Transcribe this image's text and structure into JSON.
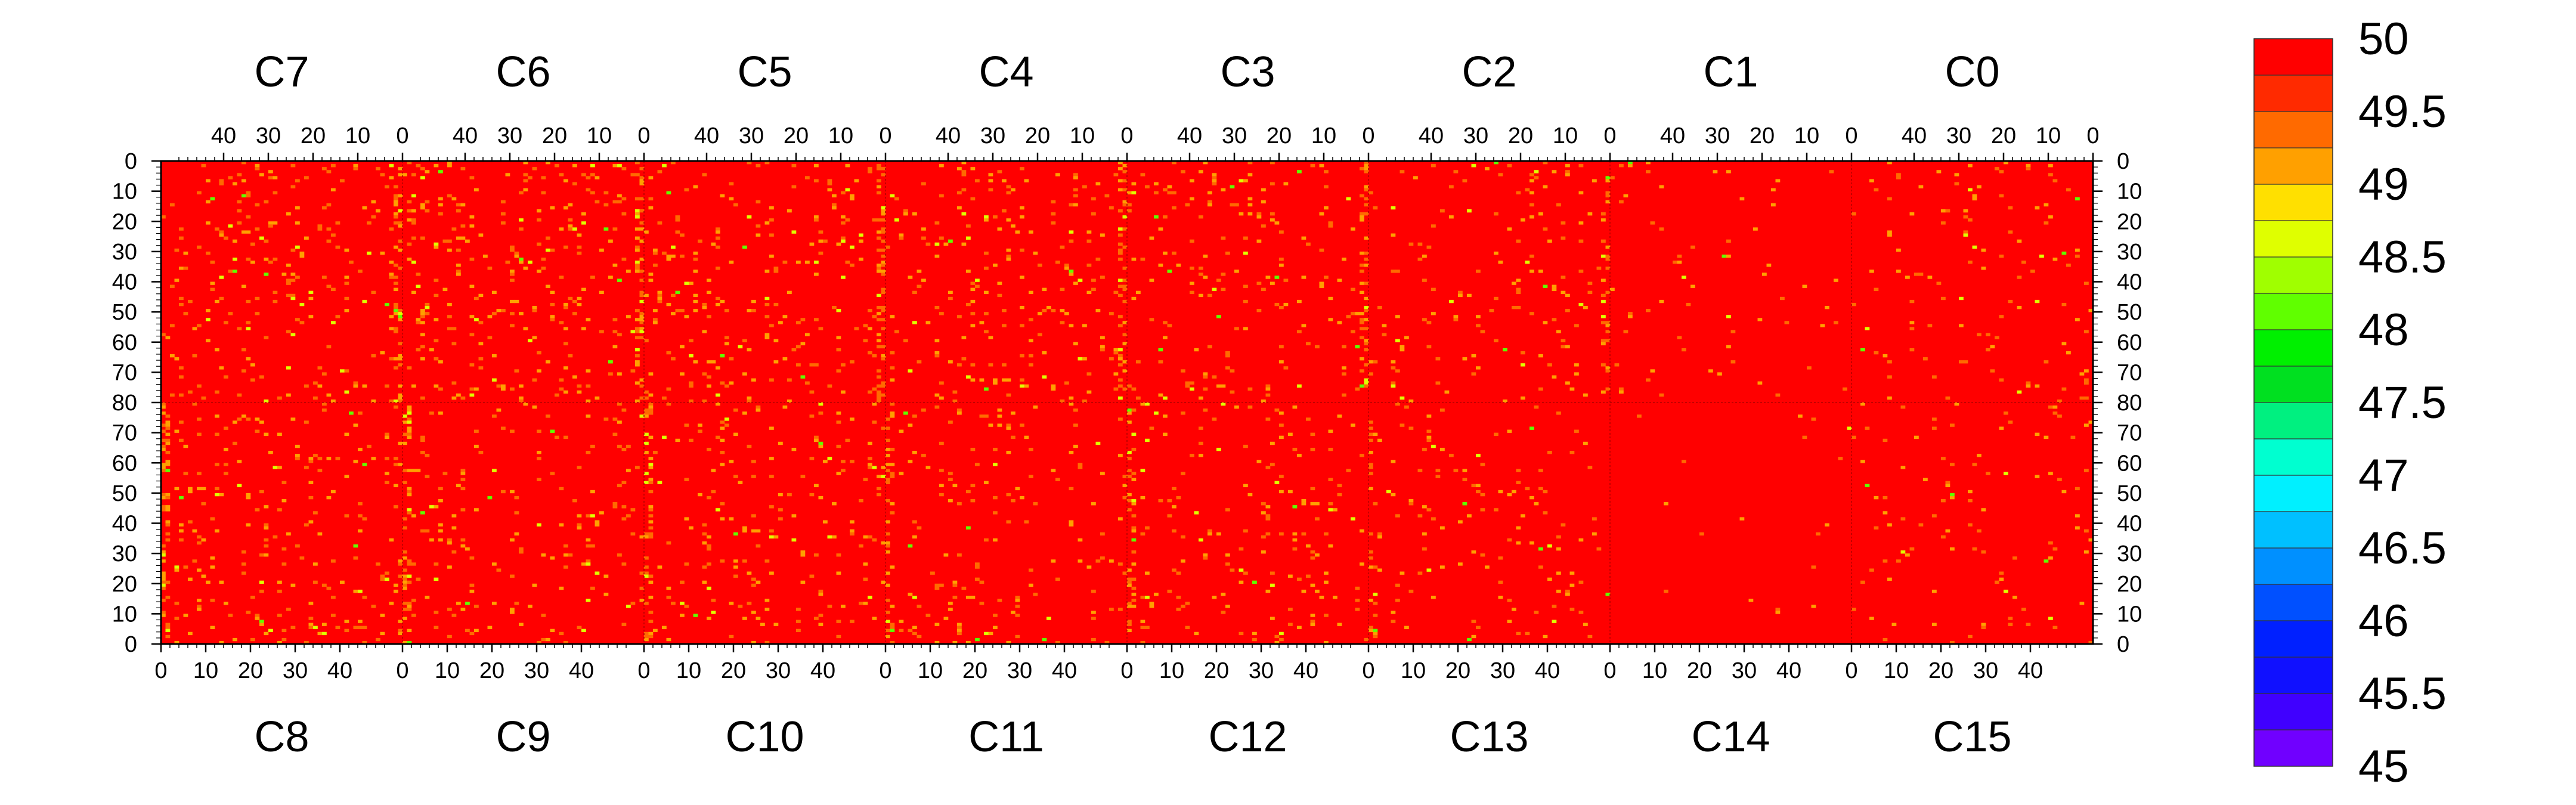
{
  "chart_data": {
    "type": "heatmap",
    "top_chips": [
      "C7",
      "C6",
      "C5",
      "C4",
      "C3",
      "C2",
      "C1",
      "C0"
    ],
    "bottom_chips": [
      "C8",
      "C9",
      "C10",
      "C11",
      "C12",
      "C13",
      "C14",
      "C15"
    ],
    "top_x_ticks": [
      40,
      30,
      20,
      10,
      0
    ],
    "bottom_x_ticks": [
      0,
      10,
      20,
      30,
      40
    ],
    "chip_columns": 54,
    "rows_per_half": 80,
    "left_y_ticks": [
      "0",
      "10",
      "20",
      "30",
      "40",
      "50",
      "60",
      "70",
      "80",
      "70",
      "60",
      "50",
      "40",
      "30",
      "20",
      "10",
      "0"
    ],
    "right_y_ticks": [
      "0",
      "10",
      "20",
      "30",
      "40",
      "50",
      "60",
      "70",
      "80",
      "70",
      "60",
      "50",
      "40",
      "30",
      "20",
      "10",
      "0"
    ],
    "zrange": [
      45,
      50
    ],
    "colorbar_labels": [
      "50",
      "49.5",
      "49",
      "48.5",
      "48",
      "47.5",
      "47",
      "46.5",
      "46",
      "45.5",
      "45"
    ],
    "colorbar_colors": [
      "#ff0000",
      "#ff2a00",
      "#ff6a00",
      "#ffa000",
      "#ffe000",
      "#dfff00",
      "#a0ff00",
      "#60ff00",
      "#00f000",
      "#00e020",
      "#00f080",
      "#00ffd0",
      "#00f0ff",
      "#00c0ff",
      "#0090ff",
      "#0050ff",
      "#0020ff",
      "#1010ff",
      "#4000ff",
      "#7000ff"
    ],
    "background_value": 50,
    "columns_with_low_values": [
      "near column 0 of C7/C6/C5/C4/C3/C2 boundaries (top half)",
      "near column 0 of C8/C9/C10/C11/C12/C13 boundaries (bottom half)"
    ],
    "typical_low_values": [
      49.5,
      49,
      48.5,
      48
    ]
  }
}
